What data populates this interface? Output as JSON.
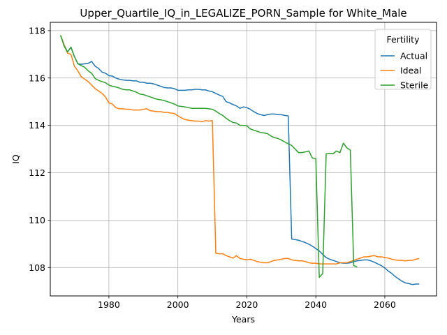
{
  "chart_data": {
    "type": "line",
    "title": "Upper_Quartile_IQ_in_LEGALIZE_PORN_Sample for White_Male",
    "xlabel": "Years",
    "ylabel": "IQ",
    "xlim": [
      1963,
      2075
    ],
    "ylim": [
      106.8,
      118.35
    ],
    "xticks": [
      1980,
      2000,
      2020,
      2040,
      2060
    ],
    "yticks": [
      108,
      110,
      112,
      114,
      116,
      118
    ],
    "grid": true,
    "legend": {
      "title": "Fertility",
      "position": "upper-right"
    },
    "series": [
      {
        "name": "Actual",
        "color": "#1f77b4",
        "x": [
          1966,
          1967,
          1968,
          1969,
          1970,
          1971,
          1972,
          1973,
          1974,
          1975,
          1976,
          1977,
          1978,
          1979,
          1980,
          1981,
          1982,
          1983,
          1984,
          1985,
          1986,
          1987,
          1988,
          1989,
          1990,
          1991,
          1992,
          1993,
          1994,
          1995,
          1996,
          1997,
          1998,
          1999,
          2000,
          2001,
          2002,
          2003,
          2004,
          2005,
          2006,
          2007,
          2008,
          2009,
          2010,
          2011,
          2012,
          2013,
          2014,
          2015,
          2016,
          2017,
          2018,
          2019,
          2020,
          2021,
          2022,
          2023,
          2024,
          2025,
          2026,
          2027,
          2028,
          2029,
          2030,
          2031,
          2032,
          2033,
          2034,
          2035,
          2036,
          2037,
          2038,
          2039,
          2040,
          2041,
          2042,
          2043,
          2044,
          2045,
          2046,
          2047,
          2048,
          2049,
          2050,
          2051,
          2052,
          2053,
          2054,
          2055,
          2056,
          2057,
          2058,
          2059,
          2060,
          2061,
          2062,
          2063,
          2064,
          2065,
          2066,
          2067,
          2068,
          2069,
          2070
        ],
        "values": [
          117.8,
          117.4,
          117.1,
          117.3,
          116.9,
          116.6,
          116.58,
          116.6,
          116.62,
          116.7,
          116.5,
          116.4,
          116.25,
          116.2,
          116.1,
          116.08,
          116.0,
          115.95,
          115.92,
          115.9,
          115.9,
          115.88,
          115.88,
          115.82,
          115.82,
          115.78,
          115.78,
          115.75,
          115.7,
          115.65,
          115.6,
          115.58,
          115.58,
          115.55,
          115.48,
          115.48,
          115.48,
          115.5,
          115.5,
          115.52,
          115.52,
          115.5,
          115.5,
          115.45,
          115.42,
          115.35,
          115.28,
          115.22,
          115.0,
          114.95,
          114.88,
          114.82,
          114.72,
          114.78,
          114.75,
          114.68,
          114.58,
          114.5,
          114.45,
          114.42,
          114.45,
          114.48,
          114.48,
          114.45,
          114.45,
          114.42,
          114.4,
          109.2,
          109.18,
          109.15,
          109.1,
          109.05,
          108.98,
          108.9,
          108.8,
          108.7,
          108.55,
          108.42,
          108.35,
          108.3,
          108.25,
          108.2,
          108.18,
          108.18,
          108.2,
          108.25,
          108.28,
          108.3,
          108.32,
          108.32,
          108.28,
          108.22,
          108.15,
          108.08,
          107.98,
          107.85,
          107.75,
          107.62,
          107.52,
          107.42,
          107.35,
          107.32,
          107.28,
          107.3,
          107.3
        ]
      },
      {
        "name": "Ideal",
        "color": "#ff7f0e",
        "x": [
          1966,
          1967,
          1968,
          1969,
          1970,
          1971,
          1972,
          1973,
          1974,
          1975,
          1976,
          1977,
          1978,
          1979,
          1980,
          1981,
          1982,
          1983,
          1984,
          1985,
          1986,
          1987,
          1988,
          1989,
          1990,
          1991,
          1992,
          1993,
          1994,
          1995,
          1996,
          1997,
          1998,
          1999,
          2000,
          2001,
          2002,
          2003,
          2004,
          2005,
          2006,
          2007,
          2008,
          2009,
          2010,
          2011,
          2012,
          2013,
          2014,
          2015,
          2016,
          2017,
          2018,
          2019,
          2020,
          2021,
          2022,
          2023,
          2024,
          2025,
          2026,
          2027,
          2028,
          2029,
          2030,
          2031,
          2032,
          2033,
          2034,
          2035,
          2036,
          2037,
          2038,
          2039,
          2040,
          2041,
          2042,
          2043,
          2044,
          2045,
          2046,
          2047,
          2048,
          2049,
          2050,
          2051,
          2052,
          2053,
          2054,
          2055,
          2056,
          2057,
          2058,
          2059,
          2060,
          2061,
          2062,
          2063,
          2064,
          2065,
          2066,
          2067,
          2068,
          2069,
          2070
        ],
        "values": [
          117.8,
          117.4,
          117.05,
          117.0,
          116.5,
          116.3,
          116.05,
          115.95,
          115.85,
          115.7,
          115.55,
          115.45,
          115.35,
          115.2,
          114.95,
          114.9,
          114.75,
          114.7,
          114.7,
          114.68,
          114.68,
          114.65,
          114.65,
          114.65,
          114.68,
          114.7,
          114.62,
          114.6,
          114.58,
          114.58,
          114.55,
          114.55,
          114.52,
          114.5,
          114.4,
          114.32,
          114.25,
          114.22,
          114.2,
          114.18,
          114.18,
          114.15,
          114.2,
          114.18,
          114.2,
          108.6,
          108.58,
          108.58,
          108.5,
          108.45,
          108.4,
          108.5,
          108.38,
          108.35,
          108.32,
          108.35,
          108.3,
          108.25,
          108.22,
          108.2,
          108.2,
          108.25,
          108.3,
          108.32,
          108.35,
          108.38,
          108.38,
          108.32,
          108.3,
          108.28,
          108.28,
          108.25,
          108.2,
          108.18,
          108.18,
          108.15,
          108.15,
          108.15,
          108.15,
          108.15,
          108.15,
          108.2,
          108.2,
          108.2,
          108.25,
          108.3,
          108.35,
          108.4,
          108.45,
          108.45,
          108.48,
          108.5,
          108.45,
          108.45,
          108.42,
          108.4,
          108.35,
          108.32,
          108.3,
          108.3,
          108.28,
          108.3,
          108.3,
          108.35,
          108.38
        ]
      },
      {
        "name": "Sterile",
        "color": "#2ca02c",
        "x": [
          1966,
          1967,
          1968,
          1969,
          1970,
          1971,
          1972,
          1973,
          1974,
          1975,
          1976,
          1977,
          1978,
          1979,
          1980,
          1981,
          1982,
          1983,
          1984,
          1985,
          1986,
          1987,
          1988,
          1989,
          1990,
          1991,
          1992,
          1993,
          1994,
          1995,
          1996,
          1997,
          1998,
          1999,
          2000,
          2001,
          2002,
          2003,
          2004,
          2005,
          2006,
          2007,
          2008,
          2009,
          2010,
          2011,
          2012,
          2013,
          2014,
          2015,
          2016,
          2017,
          2018,
          2019,
          2020,
          2021,
          2022,
          2023,
          2024,
          2025,
          2026,
          2027,
          2028,
          2029,
          2030,
          2031,
          2032,
          2033,
          2034,
          2035,
          2036,
          2037,
          2038,
          2039,
          2040,
          2041,
          2042,
          2043,
          2044,
          2045,
          2046,
          2047,
          2048,
          2049,
          2050,
          2051,
          2052
        ],
        "values": [
          117.8,
          117.35,
          117.1,
          117.3,
          116.9,
          116.6,
          116.52,
          116.45,
          116.3,
          116.2,
          115.98,
          115.9,
          115.85,
          115.8,
          115.7,
          115.65,
          115.62,
          115.58,
          115.52,
          115.5,
          115.5,
          115.45,
          115.4,
          115.32,
          115.3,
          115.25,
          115.2,
          115.15,
          115.1,
          115.08,
          115.05,
          115.0,
          114.95,
          114.9,
          114.82,
          114.8,
          114.78,
          114.75,
          114.72,
          114.72,
          114.72,
          114.72,
          114.72,
          114.7,
          114.68,
          114.6,
          114.5,
          114.42,
          114.3,
          114.2,
          114.12,
          114.1,
          114.0,
          114.0,
          113.98,
          113.85,
          113.8,
          113.75,
          113.7,
          113.68,
          113.65,
          113.55,
          113.48,
          113.45,
          113.38,
          113.3,
          113.22,
          113.15,
          113.0,
          112.85,
          112.85,
          112.88,
          112.92,
          112.62,
          112.6,
          107.58,
          107.75,
          112.8,
          112.82,
          112.8,
          112.92,
          112.85,
          113.25,
          113.05,
          112.95,
          108.08,
          108.02
        ]
      }
    ]
  }
}
